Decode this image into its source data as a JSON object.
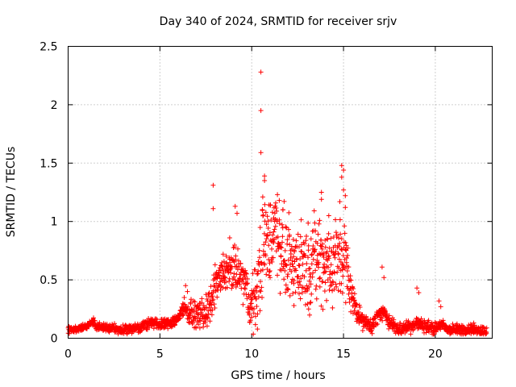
{
  "chart_data": {
    "type": "scatter",
    "title": "Day 340 of 2024, SRMTID for receiver srjv",
    "xlabel": "GPS time / hours",
    "ylabel": "SRMTID / TECUs",
    "xlim": [
      0,
      23.1
    ],
    "ylim": [
      0,
      2.5
    ],
    "x_ticks": [
      0,
      5,
      10,
      15,
      20
    ],
    "x_tick_labels": [
      "0",
      "5",
      "10",
      "15",
      "20"
    ],
    "y_ticks": [
      0,
      0.5,
      1,
      1.5,
      2,
      2.5
    ],
    "y_tick_labels": [
      "0",
      "0.5",
      "1",
      "1.5",
      "2",
      "2.5"
    ],
    "grid": true,
    "marker": "+",
    "series": [
      {
        "name": "srjv",
        "color": "#ff0000",
        "profile": [
          [
            0.0,
            0.07
          ],
          [
            0.5,
            0.08
          ],
          [
            1.0,
            0.1
          ],
          [
            1.3,
            0.14
          ],
          [
            1.6,
            0.1
          ],
          [
            2.0,
            0.09
          ],
          [
            3.0,
            0.07
          ],
          [
            4.0,
            0.1
          ],
          [
            4.5,
            0.14
          ],
          [
            5.0,
            0.11
          ],
          [
            5.5,
            0.13
          ],
          [
            6.0,
            0.17
          ],
          [
            6.3,
            0.28
          ],
          [
            6.5,
            0.22
          ],
          [
            7.0,
            0.2
          ],
          [
            7.5,
            0.22
          ],
          [
            7.8,
            0.28
          ],
          [
            8.0,
            0.45
          ],
          [
            8.3,
            0.5
          ],
          [
            8.5,
            0.58
          ],
          [
            8.8,
            0.55
          ],
          [
            9.0,
            0.6
          ],
          [
            9.3,
            0.55
          ],
          [
            9.6,
            0.48
          ],
          [
            9.9,
            0.3
          ],
          [
            10.1,
            0.28
          ],
          [
            10.3,
            0.4
          ],
          [
            10.6,
            0.8
          ],
          [
            11.0,
            0.85
          ],
          [
            11.3,
            0.95
          ],
          [
            11.6,
            0.8
          ],
          [
            12.0,
            0.65
          ],
          [
            12.5,
            0.65
          ],
          [
            13.0,
            0.62
          ],
          [
            13.5,
            0.7
          ],
          [
            14.0,
            0.65
          ],
          [
            14.5,
            0.62
          ],
          [
            15.0,
            0.75
          ],
          [
            15.3,
            0.45
          ],
          [
            15.6,
            0.3
          ],
          [
            16.0,
            0.15
          ],
          [
            16.5,
            0.1
          ],
          [
            17.0,
            0.22
          ],
          [
            17.3,
            0.2
          ],
          [
            17.6,
            0.12
          ],
          [
            18.0,
            0.08
          ],
          [
            18.6,
            0.1
          ],
          [
            19.0,
            0.13
          ],
          [
            19.3,
            0.11
          ],
          [
            19.6,
            0.1
          ],
          [
            20.0,
            0.08
          ],
          [
            20.3,
            0.12
          ],
          [
            20.6,
            0.08
          ],
          [
            21.0,
            0.07
          ],
          [
            22.0,
            0.08
          ],
          [
            22.8,
            0.06
          ]
        ],
        "spread_profile": [
          [
            0.0,
            0.02
          ],
          [
            6.0,
            0.04
          ],
          [
            7.9,
            0.12
          ],
          [
            9.9,
            0.15
          ],
          [
            10.5,
            0.3
          ],
          [
            12.0,
            0.25
          ],
          [
            15.0,
            0.3
          ],
          [
            15.5,
            0.1
          ],
          [
            16.0,
            0.05
          ],
          [
            22.8,
            0.03
          ]
        ],
        "outliers": [
          [
            7.9,
            1.31
          ],
          [
            7.9,
            1.11
          ],
          [
            8.8,
            0.86
          ],
          [
            9.1,
            1.13
          ],
          [
            9.2,
            1.07
          ],
          [
            10.5,
            2.28
          ],
          [
            10.5,
            1.95
          ],
          [
            10.5,
            1.59
          ],
          [
            10.6,
            1.21
          ],
          [
            10.7,
            1.39
          ],
          [
            10.7,
            1.35
          ],
          [
            11.2,
            1.03
          ],
          [
            11.4,
            1.23
          ],
          [
            11.5,
            1.18
          ],
          [
            11.7,
            1.1
          ],
          [
            13.8,
            1.25
          ],
          [
            13.8,
            1.19
          ],
          [
            14.2,
            1.05
          ],
          [
            14.9,
            1.48
          ],
          [
            15.0,
            1.44
          ],
          [
            14.9,
            1.38
          ],
          [
            15.0,
            1.27
          ],
          [
            15.1,
            1.22
          ],
          [
            14.8,
            1.17
          ],
          [
            15.1,
            1.12
          ],
          [
            11.0,
            0.52
          ],
          [
            10.3,
            0.55
          ],
          [
            12.3,
            0.28
          ],
          [
            13.1,
            0.25
          ],
          [
            14.4,
            0.26
          ],
          [
            17.1,
            0.61
          ],
          [
            17.2,
            0.52
          ],
          [
            19.0,
            0.43
          ],
          [
            19.1,
            0.39
          ],
          [
            20.2,
            0.32
          ],
          [
            20.3,
            0.27
          ],
          [
            6.4,
            0.45
          ],
          [
            6.5,
            0.4
          ],
          [
            9.9,
            0.14
          ],
          [
            10.0,
            0.18
          ]
        ]
      }
    ]
  }
}
